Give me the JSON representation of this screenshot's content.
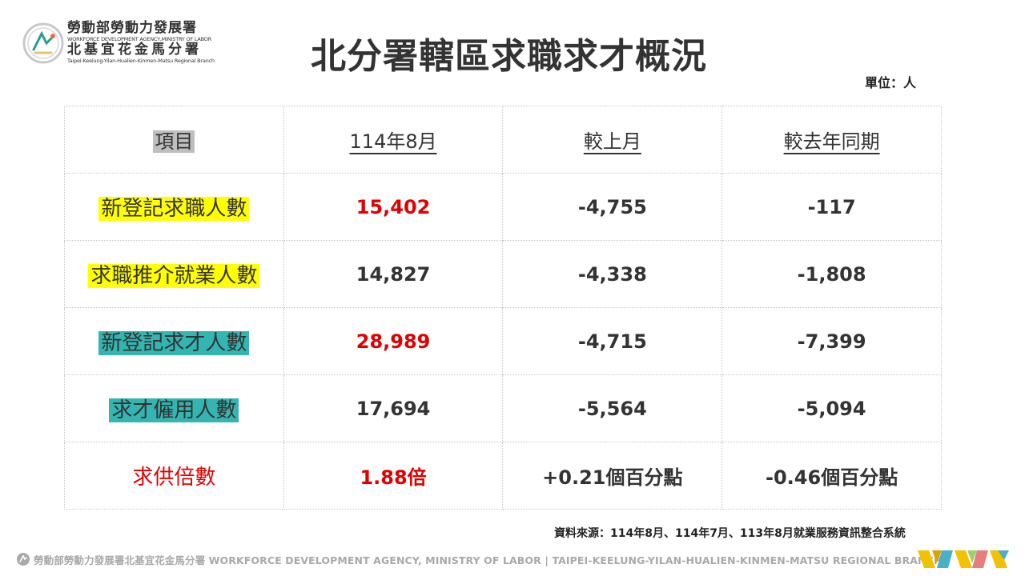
{
  "logo": {
    "line1": "勞動部勞動力發展署",
    "line2": "WORKFORCE DEVELOPMENT AGENCY,MINISTRY OF LABOR",
    "line3": "北基宜花金馬分署",
    "line4": "Taipei-Keelung-Yilan-Hualien-Kinmen-Matsu Regional Branch"
  },
  "title": "北分署轄區求職求才概況",
  "unit": "單位：人",
  "table": {
    "headers": [
      "項目",
      "114年8月",
      "較上月",
      "較去年同期"
    ],
    "rows": [
      {
        "label": "新登記求職人數",
        "value": "15,402",
        "mom": "-4,755",
        "yoy": "-117"
      },
      {
        "label": "求職推介就業人數",
        "value": "14,827",
        "mom": "-4,338",
        "yoy": "-1,808"
      },
      {
        "label": "新登記求才人數",
        "value": "28,989",
        "mom": "-4,715",
        "yoy": "-7,399"
      },
      {
        "label": "求才僱用人數",
        "value": "17,694",
        "mom": "-5,564",
        "yoy": "-5,094"
      },
      {
        "label": "求供倍數",
        "value": "1.88倍",
        "mom": "+0.21個百分點",
        "yoy": "-0.46個百分點"
      }
    ]
  },
  "source": "資料來源：114年8月、114年7月、113年8月就業服務資訊整合系統",
  "footer": {
    "text": "勞動部勞動力發展署北基宜花金馬分署 WORKFORCE DEVELOPMENT AGENCY, MINISTRY OF LABOR  |  TAIPEI-KEELUNG-YILAN-HUALIEN-KINMEN-MATSU REGIONAL BRANCH"
  },
  "colors": {
    "highlight_yellow": "#ffff00",
    "highlight_teal": "#33b5b1",
    "highlight_gray": "#bfbfbf",
    "accent_red": "#e00000"
  }
}
